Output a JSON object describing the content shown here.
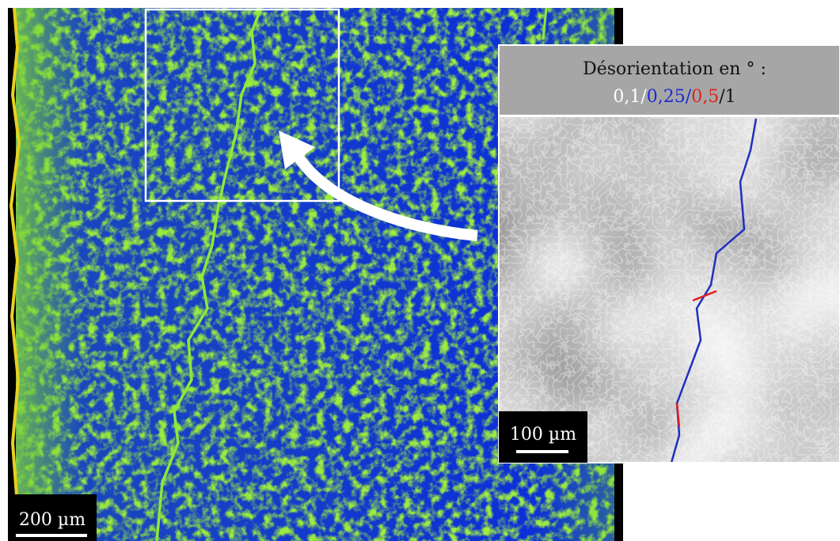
{
  "legend": {
    "title": "Désorientation en ° :",
    "separator": "/",
    "thresholds": [
      "0,1",
      "0,25",
      "0,5",
      "1"
    ]
  },
  "scale_bars": {
    "inset": "100 µm",
    "main": "200 µm"
  }
}
